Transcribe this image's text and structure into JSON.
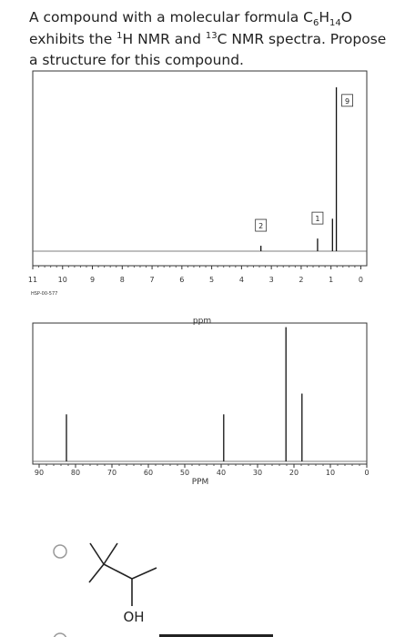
{
  "question": {
    "lines": [
      [
        {
          "text": "A compound with a molecular formula C"
        },
        {
          "text": "6",
          "style": "sub"
        },
        {
          "text": "H"
        },
        {
          "text": "14",
          "style": "sub"
        },
        {
          "text": "O"
        }
      ],
      [
        {
          "text": "exhibits the "
        },
        {
          "text": "1",
          "style": "sup"
        },
        {
          "text": "H NMR and "
        },
        {
          "text": "13",
          "style": "sup"
        },
        {
          "text": "C NMR spectra. Propose"
        }
      ],
      [
        {
          "text": "a structure for this compound."
        }
      ]
    ]
  },
  "h_nmr": {
    "xlim": [
      11,
      -0.2
    ],
    "xticks": [
      11,
      10,
      9,
      8,
      7,
      6,
      5,
      4,
      3,
      2,
      1,
      0
    ],
    "ylim": [
      0,
      100
    ],
    "xlabel": "ppm",
    "code": "HSP-00-577",
    "peaks": [
      {
        "shift": 3.35,
        "intensity": 3,
        "integral": "2"
      },
      {
        "shift": 1.45,
        "intensity": 7,
        "integral": "1"
      },
      {
        "shift": 0.95,
        "intensity": 18
      },
      {
        "shift": 0.82,
        "intensity": 91,
        "integral": "9"
      }
    ]
  },
  "c_nmr": {
    "xlim": [
      91.75,
      0
    ],
    "xticks": [
      90,
      80,
      70,
      60,
      50,
      40,
      30,
      20,
      10,
      0
    ],
    "ylim": [
      0,
      100
    ],
    "xlabel": "PPM",
    "peaks": [
      {
        "shift": 82.5,
        "intensity": 34
      },
      {
        "shift": 39.3,
        "intensity": 34
      },
      {
        "shift": 22.2,
        "intensity": 97
      },
      {
        "shift": 17.8,
        "intensity": 49
      }
    ]
  },
  "option": {
    "label": "OH"
  }
}
